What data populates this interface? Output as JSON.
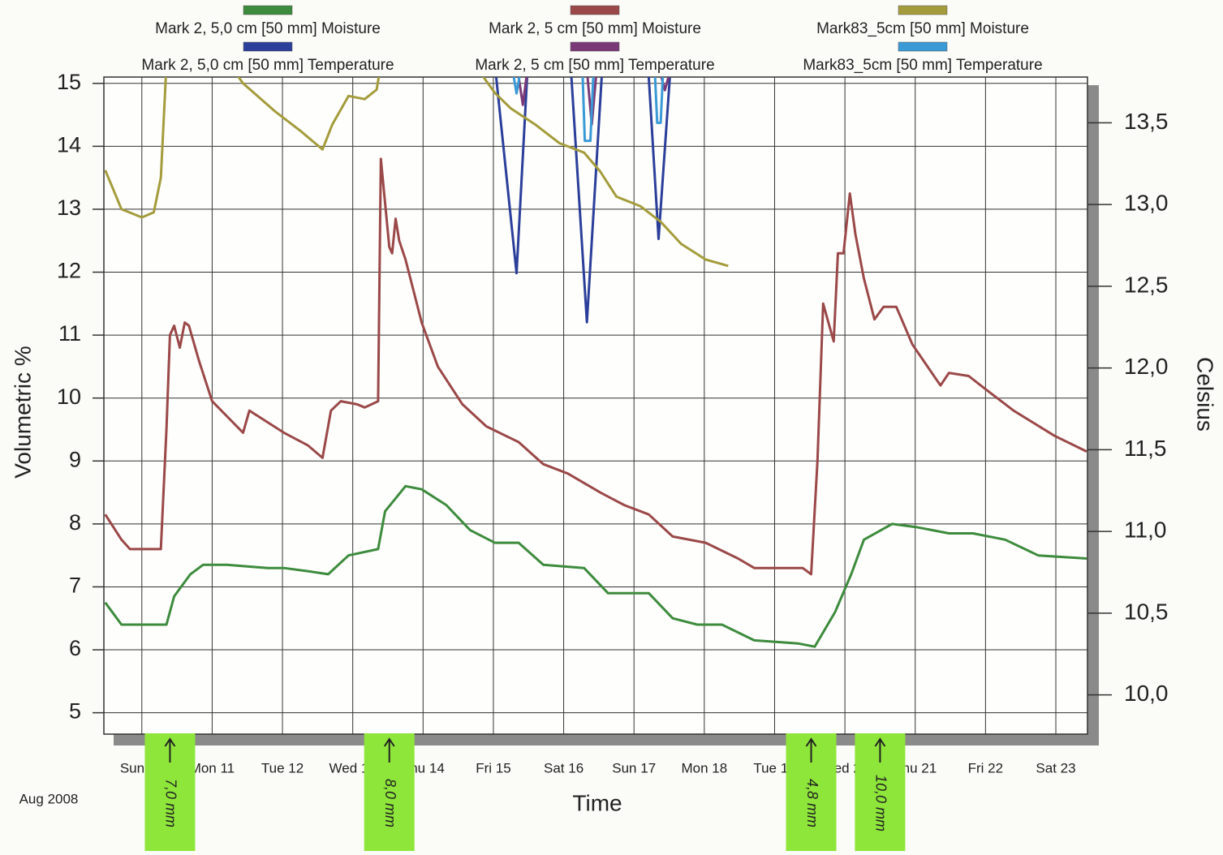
{
  "chart_data": {
    "type": "line",
    "period_label": "Aug 2008",
    "xlabel": "Time",
    "ylabel": "Volumetric %",
    "y2label": "Celsius",
    "xlim": [
      9.46,
      23.45
    ],
    "xticks": [
      {
        "value": 10,
        "label": "Sun 10"
      },
      {
        "value": 11,
        "label": "Mon 11"
      },
      {
        "value": 12,
        "label": "Tue 12"
      },
      {
        "value": 13,
        "label": "Wed 13"
      },
      {
        "value": 14,
        "label": "Thu 14"
      },
      {
        "value": 15,
        "label": "Fri 15"
      },
      {
        "value": 16,
        "label": "Sat 16"
      },
      {
        "value": 17,
        "label": "Sun 17"
      },
      {
        "value": 18,
        "label": "Mon 18"
      },
      {
        "value": 19,
        "label": "Tue 19"
      },
      {
        "value": 20,
        "label": "Wed 20"
      },
      {
        "value": 21,
        "label": "Thu 21"
      },
      {
        "value": 22,
        "label": "Fri 22"
      },
      {
        "value": 23,
        "label": "Sat 23"
      }
    ],
    "ylim": [
      4.66,
      15.1
    ],
    "yticks": [
      5,
      6,
      7,
      8,
      9,
      10,
      11,
      12,
      13,
      14,
      15
    ],
    "y2lim": [
      9.76,
      13.78
    ],
    "y2ticks": [
      {
        "value": 10,
        "label": "10,0"
      },
      {
        "value": 10.5,
        "label": "10,5"
      },
      {
        "value": 11,
        "label": "11,0"
      },
      {
        "value": 11.5,
        "label": "11,5"
      },
      {
        "value": 12,
        "label": "12,0"
      },
      {
        "value": 12.5,
        "label": "12,5"
      },
      {
        "value": 13,
        "label": "13,0"
      },
      {
        "value": 13.5,
        "label": "13,5"
      }
    ],
    "grid": true,
    "series": [
      {
        "name": "Mark 2, 5,0 cm  [50 mm] Moisture",
        "color": "#3d8b3d",
        "x": [
          9.48,
          9.71,
          10.0,
          10.35,
          10.46,
          10.69,
          10.87,
          11.21,
          11.79,
          12.02,
          12.36,
          12.65,
          12.94,
          13.36,
          13.46,
          13.75,
          13.98,
          14.33,
          14.67,
          15.02,
          15.36,
          15.71,
          16.29,
          16.63,
          17.21,
          17.55,
          17.9,
          18.25,
          18.71,
          19.34,
          19.57,
          19.86,
          20.09,
          20.27,
          20.67,
          21.01,
          21.48,
          21.82,
          22.28,
          22.75,
          23.44
        ],
        "values": [
          6.75,
          6.4,
          6.4,
          6.4,
          6.85,
          7.2,
          7.35,
          7.35,
          7.3,
          7.3,
          7.25,
          7.2,
          7.5,
          7.6,
          8.2,
          8.6,
          8.55,
          8.3,
          7.9,
          7.7,
          7.7,
          7.35,
          7.3,
          6.9,
          6.9,
          6.5,
          6.4,
          6.4,
          6.15,
          6.1,
          6.05,
          6.6,
          7.2,
          7.75,
          8.0,
          7.95,
          7.85,
          7.85,
          7.75,
          7.5,
          7.45
        ]
      },
      {
        "name": "Mark 2, 5,0 cm  [50 mm] Temperature",
        "color": "#2b3f9a",
        "axis": "y2",
        "x": [
          15.04,
          15.33,
          15.48,
          15.8,
          16.11,
          16.33,
          16.54,
          16.9,
          17.21,
          17.35,
          17.51
        ],
        "values": [
          13.78,
          12.58,
          13.78,
          null,
          13.78,
          12.28,
          13.78,
          null,
          13.78,
          12.79,
          13.78
        ]
      },
      {
        "name": "Mark 2, 5 cm  [50 mm] Moisture",
        "color": "#9a4848",
        "x": [
          9.48,
          9.71,
          9.83,
          10.0,
          10.27,
          10.35,
          10.4,
          10.46,
          10.54,
          10.61,
          10.67,
          10.81,
          11.0,
          11.44,
          11.53,
          11.67,
          12.02,
          12.36,
          12.57,
          12.69,
          12.83,
          13.06,
          13.17,
          13.36,
          13.4,
          13.52,
          13.56,
          13.61,
          13.66,
          13.75,
          13.98,
          14.21,
          14.56,
          14.9,
          15.36,
          15.71,
          16.06,
          16.52,
          16.86,
          17.21,
          17.55,
          18.02,
          18.48,
          18.71,
          19.4,
          19.52,
          19.61,
          19.69,
          19.84,
          19.9,
          19.98,
          20.07,
          20.15,
          20.27,
          20.42,
          20.55,
          20.73,
          20.96,
          21.36,
          21.48,
          21.76,
          21.99,
          22.4,
          22.98,
          23.44
        ],
        "values": [
          8.15,
          7.75,
          7.6,
          7.6,
          7.6,
          9.5,
          11.0,
          11.15,
          10.8,
          11.2,
          11.15,
          10.6,
          9.95,
          9.45,
          9.8,
          9.7,
          9.45,
          9.25,
          9.05,
          9.8,
          9.95,
          9.9,
          9.85,
          9.95,
          13.8,
          12.4,
          12.3,
          12.85,
          12.5,
          12.2,
          11.2,
          10.5,
          9.9,
          9.55,
          9.3,
          8.95,
          8.8,
          8.5,
          8.3,
          8.15,
          7.8,
          7.7,
          7.45,
          7.3,
          7.3,
          7.2,
          9.0,
          11.5,
          10.9,
          12.3,
          12.3,
          13.25,
          12.6,
          11.9,
          11.25,
          11.45,
          11.45,
          10.85,
          10.2,
          10.4,
          10.35,
          10.15,
          9.8,
          9.4,
          9.15
        ]
      },
      {
        "name": "Mark 2, 5 cm  [50 mm] Temperature",
        "color": "#7a3a78",
        "axis": "y2",
        "x": [
          15.36,
          15.42,
          15.47,
          15.9,
          16.34,
          16.4,
          16.46,
          16.9,
          17.39,
          17.44,
          17.49
        ],
        "values": [
          13.78,
          13.61,
          13.78,
          null,
          13.78,
          13.49,
          13.78,
          null,
          13.78,
          13.7,
          13.78
        ]
      },
      {
        "name": "Mark83_5cm  [50 mm] Moisture",
        "color": "#a49c3c",
        "x": [
          9.48,
          9.71,
          10.0,
          10.17,
          10.27,
          10.35,
          10.8,
          11.25,
          11.44,
          11.9,
          12.25,
          12.57,
          12.71,
          12.94,
          13.17,
          13.34,
          13.4,
          14.0,
          14.73,
          15.02,
          15.25,
          15.59,
          15.94,
          16.29,
          16.52,
          16.75,
          17.09,
          17.38,
          17.67,
          18.02,
          18.34
        ],
        "values": [
          13.62,
          13.0,
          12.87,
          12.95,
          13.5,
          15.3,
          null,
          15.3,
          15.0,
          14.55,
          14.25,
          13.95,
          14.35,
          14.8,
          14.75,
          14.9,
          15.3,
          null,
          15.3,
          14.85,
          14.6,
          14.35,
          14.05,
          13.9,
          13.6,
          13.2,
          13.05,
          12.8,
          12.45,
          12.2,
          12.1
        ]
      },
      {
        "name": "Mark83_5cm  [50 mm] Temperature",
        "color": "#3a9ad6",
        "axis": "y2",
        "x": [
          15.29,
          15.33,
          15.37,
          15.9,
          16.27,
          16.3,
          16.38,
          16.42,
          16.9,
          17.3,
          17.33,
          17.38,
          17.41
        ],
        "values": [
          13.78,
          13.68,
          13.78,
          null,
          13.78,
          13.39,
          13.39,
          13.78,
          null,
          13.78,
          13.5,
          13.5,
          13.78
        ]
      }
    ],
    "annotations": [
      {
        "x": 10.4,
        "text": "7,0 mm"
      },
      {
        "x": 13.52,
        "text": "8,0 mm"
      },
      {
        "x": 19.52,
        "text": "4,8 mm"
      },
      {
        "x": 20.5,
        "text": "10,0 mm"
      }
    ]
  }
}
